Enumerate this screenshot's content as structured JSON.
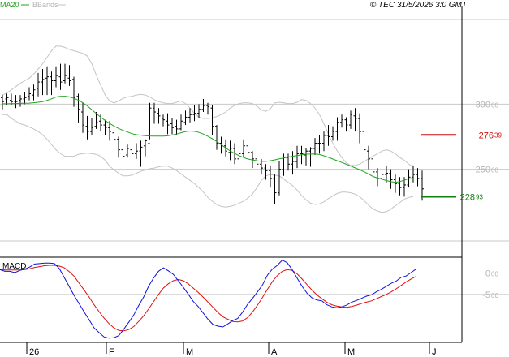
{
  "header": {
    "legend_ma": "MA20",
    "legend_bb": "BBands",
    "copyright": "© TEC 31/5/2026 3:0 GMT"
  },
  "colors": {
    "price": "#000000",
    "ma": "#1fa51f",
    "bands": "#c4c4c4",
    "resistance": "#d01010",
    "support": "#108010",
    "macd": "#1010e0",
    "signal": "#e01010",
    "grid": "#c8c8c8",
    "axis_text": "#b4b4b4"
  },
  "chart_data": [
    {
      "type": "ohlc",
      "title": "",
      "y_ticks": [
        {
          "value": 250,
          "label": "250 00"
        },
        {
          "value": 300,
          "label": "300 00"
        }
      ],
      "ylim": [
        195,
        365
      ],
      "x_labels": [
        "26",
        "F",
        "M",
        "A",
        "M",
        "J"
      ],
      "resistance": {
        "value": 276.39,
        "label": "276",
        "decimals": "39"
      },
      "support": {
        "value": 228.93,
        "label": "228",
        "decimals": "93"
      },
      "series": [
        {
          "name": "MA20",
          "values": [
            300.3,
            300.3,
            300.4,
            300.5,
            300.6,
            300.7,
            300.8,
            301.1,
            301.5,
            302,
            302.9,
            304.1,
            305.5,
            306,
            306.1,
            305.6,
            304.5,
            303.1,
            301.1,
            298.7,
            295.8,
            292.8,
            290,
            287.5,
            285.2,
            283.2,
            281.4,
            279.9,
            278.6,
            277.4,
            276.6,
            276.2,
            275.8,
            275.6,
            275.5,
            275.5,
            275.5,
            275.7,
            276.3,
            277.1,
            278.1,
            279,
            279.4,
            279.1,
            278.3,
            277.1,
            275.4,
            273.5,
            271.3,
            268.9,
            266.4,
            264.1,
            262.2,
            260.5,
            259,
            257.9,
            257.2,
            256.6,
            256.1,
            256.1,
            256.6,
            257.3,
            258,
            258.7,
            259.4,
            260,
            260.5,
            261.2,
            261.6,
            261.7,
            261.8,
            261.4,
            260.4,
            259.2,
            257.9,
            256.6,
            255.3,
            253.9,
            252.5,
            251.1,
            249.7,
            248.1,
            246.3,
            244.5,
            243.3,
            242.4,
            241.4,
            240.5,
            240.1,
            240.6,
            241.7,
            242.8,
            242.9
          ]
        },
        {
          "name": "BBands upper",
          "values": [
            307,
            308.5,
            311,
            313.5,
            316,
            318,
            320,
            323,
            327,
            331,
            336,
            341,
            344.5,
            344.5,
            343.5,
            342,
            341,
            340,
            339,
            337,
            331,
            322.5,
            314.5,
            307,
            302.5,
            301,
            302.5,
            304.5,
            305.5,
            306,
            307,
            307.5,
            307,
            305.5,
            303.5,
            302,
            301,
            300.5,
            300.5,
            301.5,
            302.5,
            300.5,
            297,
            293,
            290,
            289,
            289,
            289.5,
            290.5,
            292,
            294,
            297,
            299,
            300.5,
            301,
            301,
            300.5,
            298.5,
            295.5,
            294.5,
            296.5,
            301,
            301.5,
            301,
            300.5,
            300.5,
            301.5,
            303.5,
            303,
            300.5,
            297,
            292,
            285,
            277,
            270,
            264,
            259,
            255,
            253,
            253,
            254,
            256,
            258,
            260,
            262,
            264,
            265,
            264,
            262,
            259,
            257,
            254,
            252
          ]
        },
        {
          "name": "BBands lower",
          "values": [
            292,
            292,
            289,
            287,
            285,
            284,
            282.5,
            281,
            279,
            276.5,
            273,
            269,
            265,
            262,
            260,
            260,
            260,
            261.5,
            262,
            262.5,
            262,
            261.5,
            260,
            257,
            252.5,
            249.5,
            247,
            245,
            245,
            245.5,
            247,
            248.5,
            249.5,
            250.5,
            251,
            252,
            252.5,
            252.5,
            251,
            249,
            246.5,
            244,
            241.5,
            239,
            236,
            232.5,
            228.5,
            225.5,
            223,
            221.5,
            221,
            221.5,
            222.5,
            224,
            225.5,
            228,
            231,
            236,
            241.5,
            245,
            246,
            245.5,
            245,
            242.5,
            240,
            237.5,
            234,
            230,
            226.5,
            224,
            223,
            223.5,
            225,
            227.5,
            229.5,
            231.5,
            232.5,
            232.5,
            232,
            231,
            229,
            226,
            222.5,
            219.5,
            218,
            217,
            217.5,
            219.5,
            222,
            224.5,
            227,
            228.5,
            229
          ]
        },
        {
          "name": "OHLC",
          "ohlc": [
            [
              305,
              302,
              307,
              296
            ],
            [
              304,
              305,
              308,
              299
            ],
            [
              303,
              302,
              308,
              299
            ],
            [
              302,
              302,
              307,
              297
            ],
            [
              303,
              304,
              307,
              298
            ],
            [
              304,
              305,
              309,
              300
            ],
            [
              306,
              308,
              313,
              303
            ],
            [
              307,
              311,
              315,
              303
            ],
            [
              312,
              317,
              324,
              306
            ],
            [
              317,
              319,
              327,
              307
            ],
            [
              320,
              321,
              329,
              307
            ],
            [
              321,
              318,
              325,
              307
            ],
            [
              318,
              322,
              329,
              313
            ],
            [
              321,
              317,
              331,
              311
            ],
            [
              318,
              322,
              331,
              316
            ],
            [
              320,
              318,
              330,
              314
            ],
            [
              319,
              305,
              321,
              298
            ],
            [
              306,
              296,
              308,
              286
            ],
            [
              294,
              284,
              301,
              278
            ],
            [
              283,
              279,
              291,
              273
            ],
            [
              279,
              282,
              289,
              276
            ],
            [
              283,
              286,
              294,
              281
            ],
            [
              287,
              284,
              292,
              279
            ],
            [
              284,
              282,
              288,
              276
            ],
            [
              282,
              279,
              287,
              272
            ],
            [
              278,
              273,
              283,
              268
            ],
            [
              273,
              265,
              275,
              259
            ],
            [
              265,
              260,
              269,
              255
            ],
            [
              261,
              266,
              269,
              259
            ],
            [
              265,
              262,
              269,
              258
            ],
            [
              262,
              264,
              270,
              258
            ],
            [
              264,
              267,
              272,
              252
            ],
            [
              268,
              272,
              273,
              260
            ],
            [
              270,
              297,
              301,
              273
            ],
            [
              297,
              294,
              301,
              285
            ],
            [
              293,
              291,
              297,
              285
            ],
            [
              289,
              288,
              292,
              283
            ],
            [
              287,
              284,
              293,
              277
            ],
            [
              285,
              282,
              289,
              277
            ],
            [
              283,
              281,
              288,
              276
            ],
            [
              281,
              287,
              292,
              280
            ],
            [
              286,
              290,
              295,
              284
            ],
            [
              290,
              292,
              297,
              286
            ],
            [
              292,
              293,
              299,
              287
            ],
            [
              293,
              296,
              300,
              289
            ],
            [
              296,
              299,
              304,
              294
            ],
            [
              299,
              298,
              301,
              292
            ],
            [
              297,
              283,
              299,
              276
            ],
            [
              283,
              270,
              284,
              265
            ],
            [
              270,
              268,
              275,
              262
            ],
            [
              268,
              264,
              273,
              260
            ],
            [
              263,
              266,
              272,
              257
            ],
            [
              266,
              258,
              270,
              254
            ],
            [
              258,
              262,
              269,
              256
            ],
            [
              262,
              268,
              273,
              259
            ],
            [
              268,
              263,
              269,
              255
            ],
            [
              263,
              258,
              264,
              251
            ],
            [
              258,
              254,
              260,
              249
            ],
            [
              254,
              251,
              258,
              246
            ],
            [
              251,
              249,
              254,
              242
            ],
            [
              249,
              243,
              253,
              236
            ],
            [
              243,
              232,
              246,
              223
            ],
            [
              232,
              250,
              256,
              230
            ],
            [
              250,
              259,
              262,
              245
            ],
            [
              259,
              254,
              262,
              249
            ],
            [
              254,
              256,
              264,
              246
            ],
            [
              256,
              262,
              268,
              251
            ],
            [
              262,
              262,
              268,
              254
            ],
            [
              261,
              264,
              266,
              253
            ],
            [
              264,
              266,
              267,
              252
            ],
            [
              266,
              270,
              274,
              261
            ],
            [
              270,
              270,
              276,
              262
            ],
            [
              270,
              276,
              279,
              264
            ],
            [
              276,
              275,
              284,
              268
            ],
            [
              275,
              279,
              283,
              272
            ],
            [
              279,
              286,
              290,
              272
            ],
            [
              286,
              288,
              292,
              282
            ],
            [
              288,
              284,
              290,
              279
            ],
            [
              284,
              292,
              295,
              281
            ],
            [
              291,
              289,
              297,
              279
            ],
            [
              289,
              279,
              293,
              270
            ],
            [
              279,
              265,
              285,
              255
            ],
            [
              264,
              258,
              268,
              250
            ],
            [
              258,
              248,
              261,
              241
            ],
            [
              248,
              243,
              251,
              237
            ],
            [
              243,
              246,
              251,
              239
            ],
            [
              246,
              247,
              253,
              240
            ],
            [
              247,
              242,
              250,
              235
            ],
            [
              242,
              239,
              246,
              232
            ],
            [
              239,
              236,
              244,
              230
            ],
            [
              236,
              238,
              244,
              229
            ],
            [
              238,
              244,
              250,
              236
            ],
            [
              244,
              246,
              253,
              240
            ],
            [
              246,
              243,
              251,
              237
            ],
            [
              243,
              235,
              249,
              226
            ]
          ]
        }
      ]
    },
    {
      "type": "line",
      "title": "MACD",
      "y_ticks": [
        {
          "value": 0,
          "label": "0 00"
        },
        {
          "value": -5,
          "label": "-5 00"
        }
      ],
      "ylim": [
        -16,
        3.5
      ],
      "series": [
        {
          "name": "MACD",
          "values": [
            0.8,
            0.4,
            0.4,
            0.1,
            0.6,
            0.9,
            1.4,
            2.1,
            2.2,
            2.3,
            2.3,
            2.2,
            1,
            -1.1,
            -3.2,
            -5.3,
            -7.2,
            -9.1,
            -10.9,
            -12.8,
            -13.9,
            -14.9,
            -15.2,
            -15.1,
            -14.6,
            -13.1,
            -11.5,
            -9.8,
            -7.6,
            -5.6,
            -3.1,
            -1.2,
            0.4,
            1.2,
            0.5,
            -0.3,
            -1.8,
            -3.3,
            -4.9,
            -6.6,
            -7.8,
            -9.3,
            -10.8,
            -12,
            -12.4,
            -12.6,
            -11.9,
            -11.1,
            -10.6,
            -9.1,
            -7.3,
            -5.9,
            -4.4,
            -2.8,
            -0.5,
            0.9,
            1.8,
            3,
            2.4,
            0.8,
            -1.2,
            -3.1,
            -4.7,
            -5.8,
            -6.3,
            -6.5,
            -7.4,
            -7.9,
            -8.1,
            -7.9,
            -7.5,
            -6.8,
            -6.4,
            -5.9,
            -5.4,
            -5.1,
            -4.4,
            -3.8,
            -3.1,
            -2.4,
            -1.9,
            -1,
            -0.7,
            0.1,
            0.9
          ]
        },
        {
          "name": "Signal",
          "values": [
            0.8,
            0.7,
            0.7,
            0.7,
            0.7,
            0.8,
            1,
            1.3,
            1.5,
            1.7,
            1.8,
            1.8,
            1.6,
            1.2,
            0.3,
            -0.8,
            -2.4,
            -4,
            -5.6,
            -7.4,
            -9,
            -10.5,
            -11.8,
            -12.8,
            -13.4,
            -13.5,
            -13.2,
            -12.5,
            -11.3,
            -10,
            -8.4,
            -6.7,
            -5,
            -3.5,
            -2.5,
            -1.8,
            -1.5,
            -1.8,
            -2.5,
            -3.5,
            -4.5,
            -5.6,
            -6.8,
            -8,
            -9.2,
            -10.2,
            -10.8,
            -11.3,
            -11.4,
            -11.2,
            -10.4,
            -9.1,
            -7.5,
            -5.7,
            -3.8,
            -2,
            -0.6,
            0.4,
            0.8,
            0.6,
            -0.2,
            -1.4,
            -2.7,
            -4,
            -5.1,
            -6,
            -6.8,
            -7.4,
            -7.7,
            -7.9,
            -8,
            -7.8,
            -7.5,
            -7.1,
            -6.8,
            -6.5,
            -6,
            -5.5,
            -5,
            -4.4,
            -3.7,
            -2.9,
            -2.1,
            -1.4,
            -0.8
          ]
        }
      ]
    }
  ]
}
